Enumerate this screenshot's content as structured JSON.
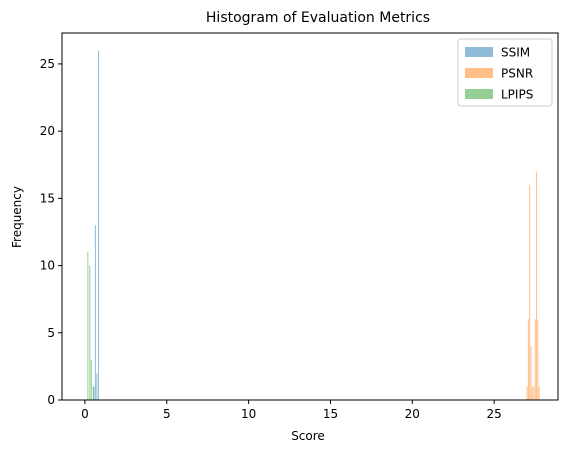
{
  "chart_data": {
    "type": "bar",
    "title": "Histogram of Evaluation Metrics",
    "xlabel": "Score",
    "ylabel": "Frequency",
    "xlim": [
      -1.4,
      28.9
    ],
    "ylim": [
      0,
      27.3
    ],
    "xticks": [
      0,
      5,
      10,
      15,
      20,
      25
    ],
    "yticks": [
      0,
      5,
      10,
      15,
      20,
      25
    ],
    "grid": false,
    "legend_position": "top-right",
    "series": [
      {
        "name": "SSIM",
        "color": "#1f77b4",
        "alpha": 0.5,
        "bins": [
          {
            "x0": 0.52,
            "x1": 0.55,
            "count": 1
          },
          {
            "x0": 0.61,
            "x1": 0.64,
            "count": 13
          },
          {
            "x0": 0.7,
            "x1": 0.73,
            "count": 2
          },
          {
            "x0": 0.8,
            "x1": 0.83,
            "count": 26
          }
        ]
      },
      {
        "name": "PSNR",
        "color": "#ff7f0e",
        "alpha": 0.5,
        "bins": [
          {
            "x0": 26.98,
            "x1": 27.04,
            "count": 1
          },
          {
            "x0": 27.06,
            "x1": 27.12,
            "count": 6
          },
          {
            "x0": 27.14,
            "x1": 27.2,
            "count": 16
          },
          {
            "x0": 27.22,
            "x1": 27.28,
            "count": 4
          },
          {
            "x0": 27.3,
            "x1": 27.36,
            "count": 1
          },
          {
            "x0": 27.4,
            "x1": 27.46,
            "count": 1
          },
          {
            "x0": 27.48,
            "x1": 27.54,
            "count": 6
          },
          {
            "x0": 27.56,
            "x1": 27.62,
            "count": 17
          },
          {
            "x0": 27.64,
            "x1": 27.7,
            "count": 6
          },
          {
            "x0": 27.72,
            "x1": 27.78,
            "count": 1
          }
        ]
      },
      {
        "name": "LPIPS",
        "color": "#2ca02c",
        "alpha": 0.5,
        "bins": [
          {
            "x0": 0.15,
            "x1": 0.19,
            "count": 11
          },
          {
            "x0": 0.27,
            "x1": 0.31,
            "count": 10
          },
          {
            "x0": 0.36,
            "x1": 0.4,
            "count": 3
          },
          {
            "x0": 0.48,
            "x1": 0.52,
            "count": 1
          }
        ]
      }
    ]
  }
}
